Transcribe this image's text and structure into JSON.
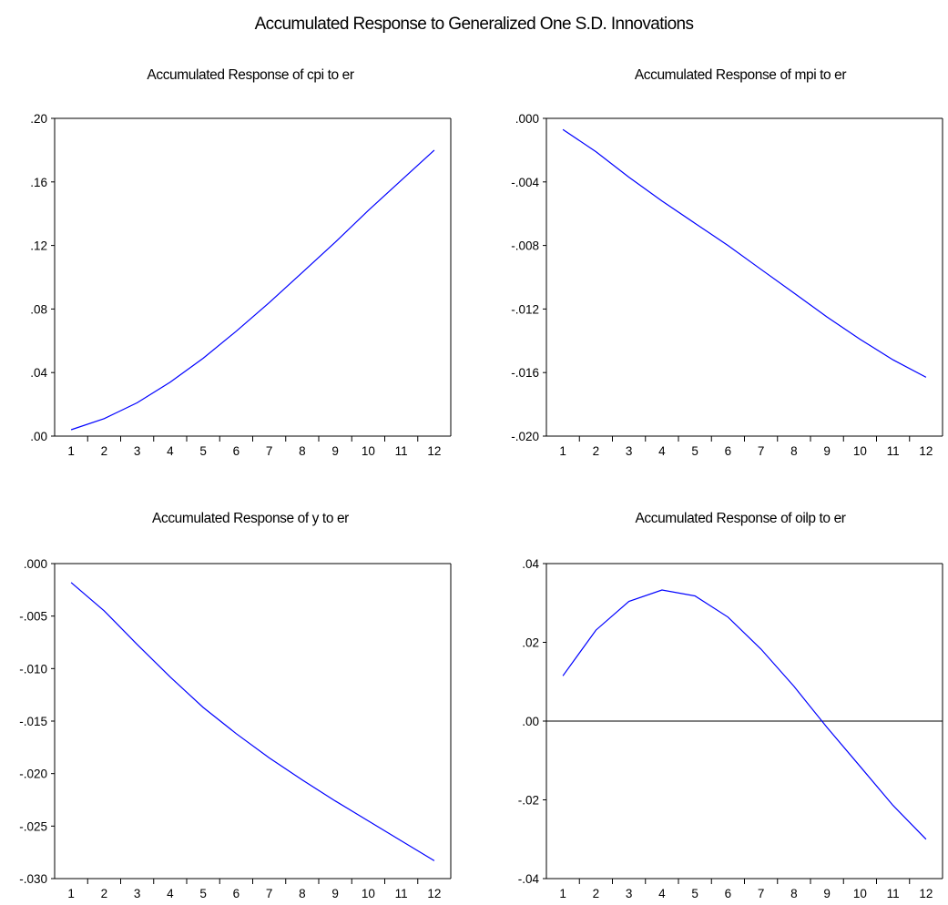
{
  "title": "Accumulated Response to Generalized One S.D. Innovations",
  "colors": {
    "line": "#0000ff",
    "axis": "#000000",
    "background": "#ffffff"
  },
  "chart_data": [
    {
      "type": "line",
      "title": "Accumulated Response of cpi to er",
      "x": [
        1,
        2,
        3,
        4,
        5,
        6,
        7,
        8,
        9,
        10,
        11,
        12
      ],
      "xticklabels": [
        "1",
        "2",
        "3",
        "4",
        "5",
        "6",
        "7",
        "8",
        "9",
        "10",
        "11",
        "12"
      ],
      "ylim": [
        0.0,
        0.2
      ],
      "yticks": [
        0.0,
        0.04,
        0.08,
        0.12,
        0.16,
        0.2
      ],
      "yticklabels": [
        ".00",
        ".04",
        ".08",
        ".12",
        ".16",
        ".20"
      ],
      "zero_line": false,
      "series": [
        {
          "values": [
            0.004,
            0.011,
            0.021,
            0.034,
            0.049,
            0.066,
            0.084,
            0.103,
            0.122,
            0.142,
            0.161,
            0.18
          ]
        }
      ]
    },
    {
      "type": "line",
      "title": "Accumulated Response of mpi to er",
      "x": [
        1,
        2,
        3,
        4,
        5,
        6,
        7,
        8,
        9,
        10,
        11,
        12
      ],
      "xticklabels": [
        "1",
        "2",
        "3",
        "4",
        "5",
        "6",
        "7",
        "8",
        "9",
        "10",
        "11",
        "12"
      ],
      "ylim": [
        -0.02,
        0.0
      ],
      "yticks": [
        -0.02,
        -0.016,
        -0.012,
        -0.008,
        -0.004,
        0.0
      ],
      "yticklabels": [
        "-.020",
        "-.016",
        "-.012",
        "-.008",
        "-.004",
        ".000"
      ],
      "zero_line": false,
      "series": [
        {
          "values": [
            -0.0007,
            -0.0021,
            -0.0037,
            -0.0052,
            -0.0066,
            -0.008,
            -0.0095,
            -0.011,
            -0.0125,
            -0.0139,
            -0.0152,
            -0.0163
          ]
        }
      ]
    },
    {
      "type": "line",
      "title": "Accumulated Response of y to er",
      "x": [
        1,
        2,
        3,
        4,
        5,
        6,
        7,
        8,
        9,
        10,
        11,
        12
      ],
      "xticklabels": [
        "1",
        "2",
        "3",
        "4",
        "5",
        "6",
        "7",
        "8",
        "9",
        "10",
        "11",
        "12"
      ],
      "ylim": [
        -0.03,
        0.0
      ],
      "yticks": [
        -0.03,
        -0.025,
        -0.02,
        -0.015,
        -0.01,
        -0.005,
        0.0
      ],
      "yticklabels": [
        "-.030",
        "-.025",
        "-.020",
        "-.015",
        "-.010",
        "-.005",
        ".000"
      ],
      "zero_line": false,
      "series": [
        {
          "values": [
            -0.0018,
            -0.0045,
            -0.0077,
            -0.0108,
            -0.0137,
            -0.0162,
            -0.0185,
            -0.0206,
            -0.0226,
            -0.0245,
            -0.0264,
            -0.0283
          ]
        }
      ]
    },
    {
      "type": "line",
      "title": "Accumulated Response of oilp to er",
      "x": [
        1,
        2,
        3,
        4,
        5,
        6,
        7,
        8,
        9,
        10,
        11,
        12
      ],
      "xticklabels": [
        "1",
        "2",
        "3",
        "4",
        "5",
        "6",
        "7",
        "8",
        "9",
        "10",
        "11",
        "12"
      ],
      "ylim": [
        -0.04,
        0.04
      ],
      "yticks": [
        -0.04,
        -0.02,
        0.0,
        0.02,
        0.04
      ],
      "yticklabels": [
        "-.04",
        "-.02",
        ".00",
        ".02",
        ".04"
      ],
      "zero_line": true,
      "series": [
        {
          "values": [
            0.0115,
            0.0231,
            0.0304,
            0.0333,
            0.0318,
            0.0264,
            0.0183,
            0.0088,
            -0.0016,
            -0.0115,
            -0.0214,
            -0.03
          ]
        }
      ]
    }
  ]
}
